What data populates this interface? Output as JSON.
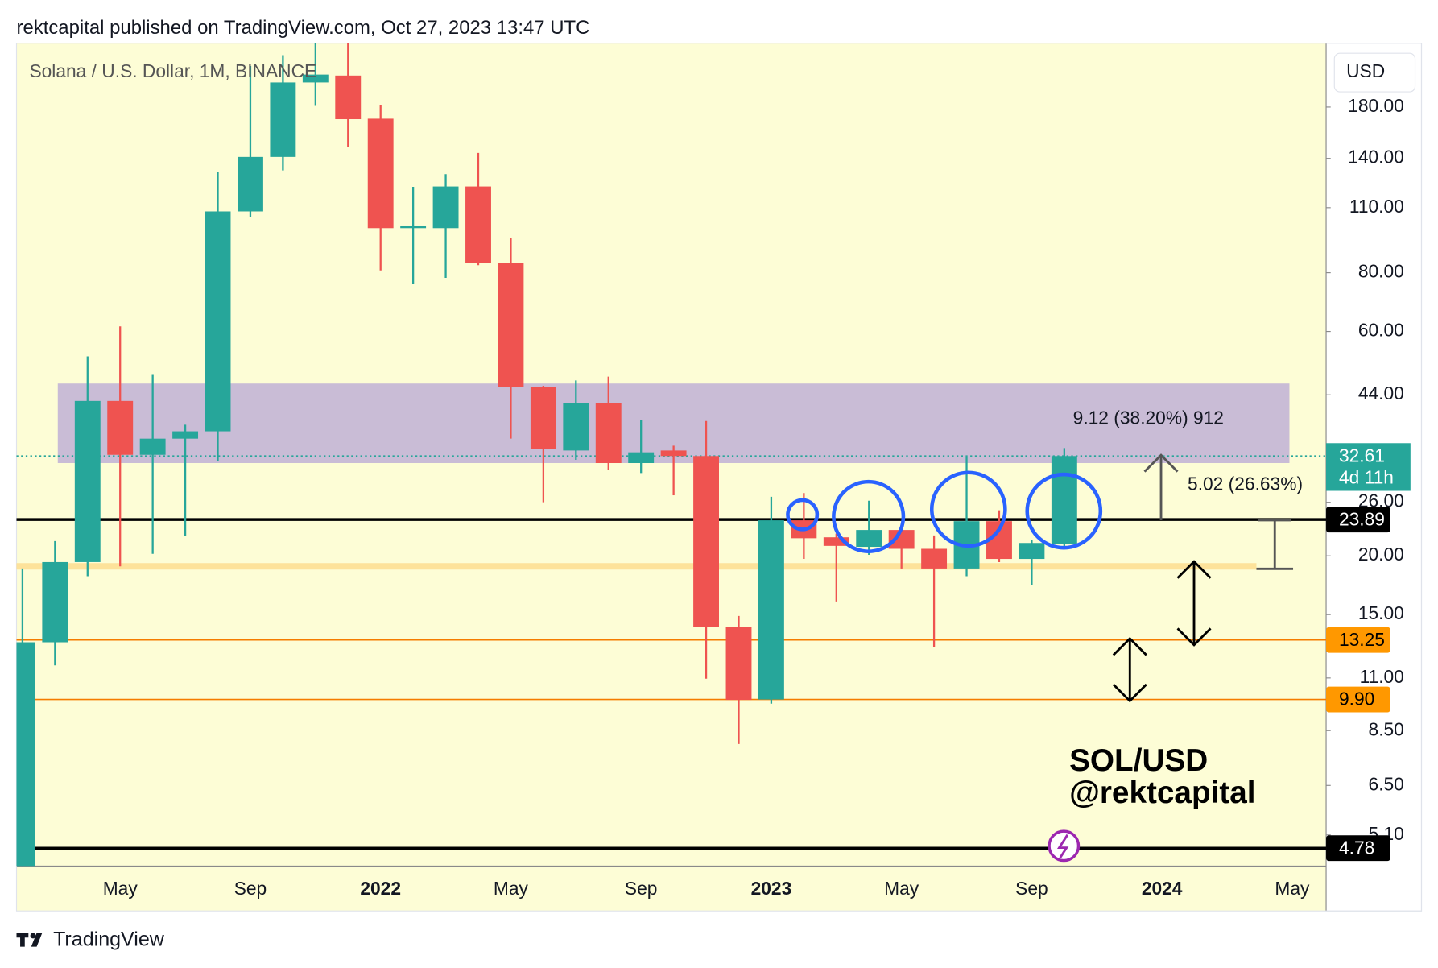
{
  "header": "rektcapital published on TradingView.com, Oct 27, 2023 13:47 UTC",
  "footer": "TradingView",
  "chart_data": {
    "type": "candlestick",
    "title": "Solana / U.S. Dollar, 1M, BINANCE",
    "currency": "USD",
    "log_scale": true,
    "up_color": "#26a69a",
    "down_color": "#ef5350",
    "categories": [
      null,
      null,
      null,
      "May",
      null,
      null,
      null,
      "Sep",
      null,
      null,
      null,
      "2022",
      null,
      null,
      null,
      "May",
      null,
      null,
      null,
      "Sep",
      null,
      null,
      null,
      "2023",
      null,
      null,
      null,
      "May",
      null,
      null,
      null,
      "Sep",
      null,
      null,
      null,
      "2024",
      null,
      null,
      null,
      "May"
    ],
    "open": [
      4.2,
      13.1,
      19.4,
      42.7,
      32.8,
      35.5,
      36.8,
      108,
      141,
      203,
      210,
      170,
      99.5,
      99.5,
      122,
      84,
      45.7,
      33.5,
      42.3,
      31.5,
      33.5,
      32.6,
      14.1,
      9.9,
      23.8,
      21.9,
      20.9,
      22.7,
      20.7,
      18.8,
      23.7,
      19.7,
      21.2,
      null,
      null,
      null,
      null,
      null,
      null,
      null
    ],
    "high": [
      18.8,
      21.5,
      53.1,
      61.5,
      48.5,
      38,
      131,
      220,
      232,
      260,
      257,
      182,
      121.8,
      129.6,
      143.8,
      94.7,
      46,
      47.2,
      48.1,
      38.9,
      34.3,
      38.7,
      14.9,
      26.7,
      27.2,
      22.3,
      26.2,
      23.3,
      22.1,
      32.4,
      25,
      21.6,
      33.9,
      null,
      null,
      null,
      null,
      null,
      null,
      null
    ],
    "low": [
      3.9,
      11.7,
      18.1,
      19,
      20.2,
      22,
      31.8,
      105,
      132,
      181,
      148,
      80.9,
      75.6,
      78,
      83,
      35.5,
      26,
      32,
      30.5,
      30,
      26.9,
      10.96,
      7.96,
      9.7,
      19.7,
      16,
      20.1,
      18.8,
      12.8,
      18.1,
      19.4,
      17.3,
      20.7,
      null,
      null,
      null,
      null,
      null,
      null,
      null
    ],
    "close": [
      13.1,
      19.4,
      42.7,
      32.8,
      35.5,
      36.8,
      108,
      141,
      203,
      211,
      169.6,
      99.5,
      100.4,
      122,
      83.8,
      45.7,
      33.7,
      42.3,
      31.5,
      33.2,
      32.6,
      14.1,
      9.88,
      23.8,
      21.8,
      21,
      22.7,
      20.7,
      18.8,
      23.7,
      19.7,
      21.3,
      32.6,
      null,
      null,
      null,
      null,
      null,
      null,
      null
    ],
    "ylim": [
      4.38,
      246
    ],
    "yticks": [
      {
        "value": 180,
        "label": "180.00"
      },
      {
        "value": 140,
        "label": "140.00"
      },
      {
        "value": 110,
        "label": "110.00"
      },
      {
        "value": 80,
        "label": "80.00"
      },
      {
        "value": 60,
        "label": "60.00"
      },
      {
        "value": 44,
        "label": "44.00"
      },
      {
        "value": 26,
        "label": "26.00"
      },
      {
        "value": 20,
        "label": "20.00"
      },
      {
        "value": 15,
        "label": "15.00"
      },
      {
        "value": 11,
        "label": "11.00"
      },
      {
        "value": 8.5,
        "label": "8.50"
      },
      {
        "value": 6.5,
        "label": "6.50"
      },
      {
        "value": 5.1,
        "label": "5.10"
      }
    ],
    "zone": {
      "top": 46.5,
      "bottom": 31.5,
      "color": "#c9bcd6"
    },
    "support_band": {
      "value": 19,
      "color": "#fde29a"
    },
    "levels": [
      {
        "value": 23.89,
        "color": "#000000"
      },
      {
        "value": 13.25,
        "color": "#ff9800"
      },
      {
        "value": 9.9,
        "label": "9.90",
        "color": "#ff9800"
      },
      {
        "value": 4.78,
        "color": "#000000"
      }
    ],
    "last_price": {
      "value": 32.61,
      "countdown": "4d 11h",
      "color": "#26a69a"
    },
    "annotations": [
      "9.12 (38.20%) 912",
      "5.02 (26.63%)",
      "SOL/USD",
      "@rektcapital"
    ]
  }
}
